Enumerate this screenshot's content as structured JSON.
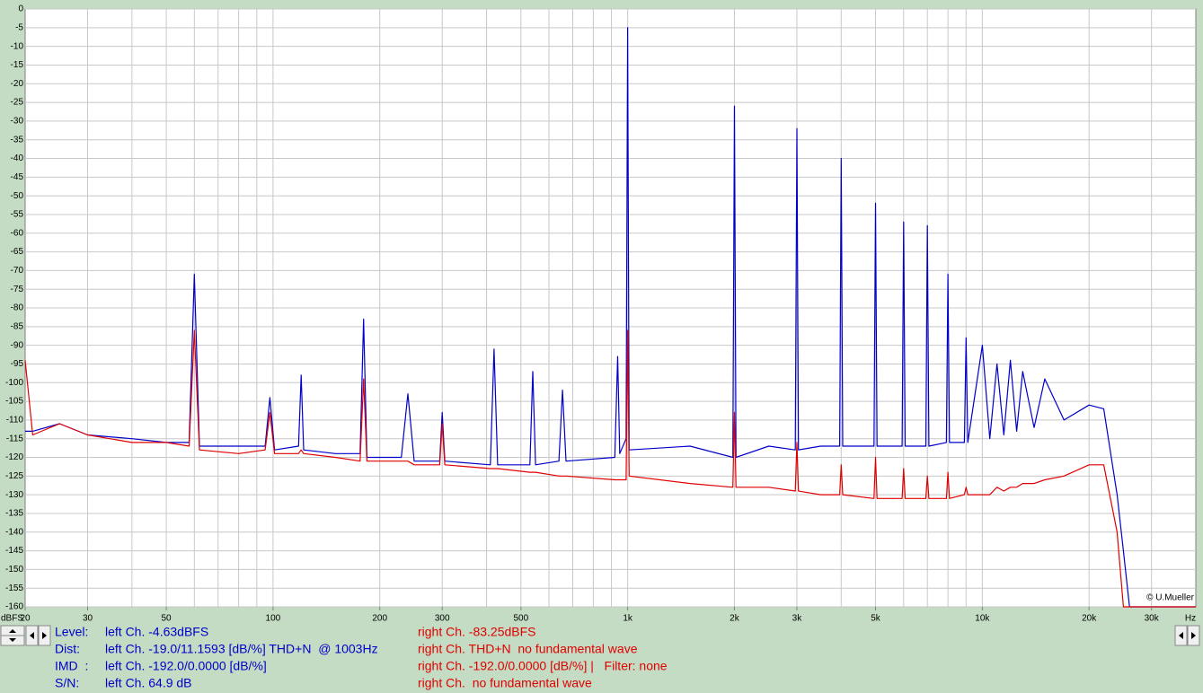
{
  "chart_data": {
    "type": "line",
    "xscale": "log",
    "x_unit": "Hz",
    "y_unit": "dBFS",
    "annotation": "© U.Mueller",
    "grid": true,
    "xlim": [
      20,
      40000
    ],
    "ylim": [
      -160,
      0
    ],
    "yticks": [
      0,
      -5,
      -10,
      -15,
      -20,
      -25,
      -30,
      -35,
      -40,
      -45,
      -50,
      -55,
      -60,
      -65,
      -70,
      -75,
      -80,
      -85,
      -90,
      -95,
      -100,
      -105,
      -110,
      -115,
      -120,
      -125,
      -130,
      -135,
      -140,
      -145,
      -150,
      -155,
      -160
    ],
    "xticks": [
      20,
      30,
      50,
      100,
      200,
      300,
      500,
      {
        "value": 1000,
        "label": "1k"
      },
      {
        "value": 2000,
        "label": "2k"
      },
      {
        "value": 3000,
        "label": "3k"
      },
      {
        "value": 5000,
        "label": "5k"
      },
      {
        "value": 10000,
        "label": "10k"
      },
      {
        "value": 20000,
        "label": "20k"
      },
      {
        "value": 30000,
        "label": "30k"
      }
    ],
    "xgrid": [
      30,
      40,
      50,
      60,
      70,
      80,
      90,
      100,
      200,
      300,
      400,
      500,
      600,
      700,
      800,
      900,
      1000,
      2000,
      3000,
      4000,
      5000,
      6000,
      7000,
      8000,
      9000,
      10000,
      20000,
      30000
    ],
    "x": [
      20,
      21,
      25,
      30,
      40,
      50,
      58,
      60,
      62,
      80,
      95,
      98,
      101,
      118,
      120,
      122,
      150,
      176,
      180,
      184,
      230,
      240,
      250,
      295,
      300,
      305,
      410,
      420,
      430,
      530,
      540,
      550,
      640,
      655,
      670,
      920,
      937,
      950,
      990,
      1000,
      1010,
      1500,
      1980,
      2000,
      2020,
      2500,
      2970,
      3000,
      3030,
      3500,
      3960,
      4000,
      4040,
      4950,
      5000,
      5050,
      5940,
      6000,
      6060,
      6930,
      7000,
      7070,
      7920,
      8000,
      8080,
      8900,
      9000,
      9100,
      10000,
      10500,
      11000,
      11500,
      12000,
      12500,
      13000,
      14000,
      15000,
      17000,
      20000,
      22000,
      24000,
      25000,
      26000,
      40000
    ],
    "series": [
      {
        "name": "left Ch.",
        "color": "#0000c8",
        "values": [
          -113,
          -113,
          -111,
          -114,
          -115,
          -116,
          -116,
          -71,
          -117,
          -117,
          -117,
          -104,
          -118,
          -117,
          -98,
          -118,
          -119,
          -119,
          -83,
          -120,
          -120,
          -103,
          -121,
          -121,
          -108,
          -121,
          -122,
          -91,
          -122,
          -122,
          -97,
          -122,
          -121,
          -102,
          -121,
          -120,
          -93,
          -119,
          -115,
          -5,
          -118,
          -117,
          -120,
          -26,
          -120,
          -117,
          -118,
          -32,
          -118,
          -117,
          -117,
          -40,
          -117,
          -117,
          -52,
          -117,
          -117,
          -57,
          -117,
          -117,
          -58,
          -117,
          -116,
          -71,
          -116,
          -116,
          -88,
          -116,
          -90,
          -115,
          -95,
          -114,
          -94,
          -113,
          -97,
          -112,
          -99,
          -110,
          -106,
          -107,
          -130,
          -145,
          -160,
          -160
        ]
      },
      {
        "name": "right Ch.",
        "color": "#e00000",
        "values": [
          -94,
          -114,
          -111,
          -114,
          -116,
          -116,
          -117,
          -86,
          -118,
          -119,
          -118,
          -108,
          -119,
          -119,
          -118,
          -119,
          -120,
          -121,
          -99,
          -121,
          -121,
          -121,
          -122,
          -122,
          -111,
          -122,
          -123,
          -123,
          -123,
          -124,
          -124,
          -124,
          -125,
          -125,
          -125,
          -126,
          -126,
          -126,
          -126,
          -86,
          -125,
          -127,
          -128,
          -108,
          -128,
          -128,
          -129,
          -116,
          -129,
          -130,
          -130,
          -122,
          -130,
          -131,
          -120,
          -131,
          -131,
          -123,
          -131,
          -131,
          -125,
          -131,
          -131,
          -124,
          -131,
          -130,
          -128,
          -130,
          -130,
          -130,
          -128,
          -129,
          -128,
          -128,
          -127,
          -127,
          -126,
          -125,
          -122,
          -122,
          -140,
          -160,
          -160,
          -160
        ]
      }
    ]
  },
  "status_panel": {
    "rows": [
      {
        "label": "Level:",
        "left": "left Ch. -4.63dBFS",
        "right": "right Ch. -83.25dBFS"
      },
      {
        "label": "Dist:",
        "left": "left Ch. -19.0/11.1593 [dB/%] THD+N  @ 1003Hz",
        "right": "right Ch. THD+N  no fundamental wave"
      },
      {
        "label": "IMD  :",
        "left": "left Ch. -192.0/0.0000 [dB/%]",
        "right": "right Ch. -192.0/0.0000 [dB/%] |   Filter: none"
      },
      {
        "label": "S/N:",
        "left": "left Ch. 64.9 dB",
        "right": "right Ch.  no fundamental wave"
      }
    ]
  }
}
